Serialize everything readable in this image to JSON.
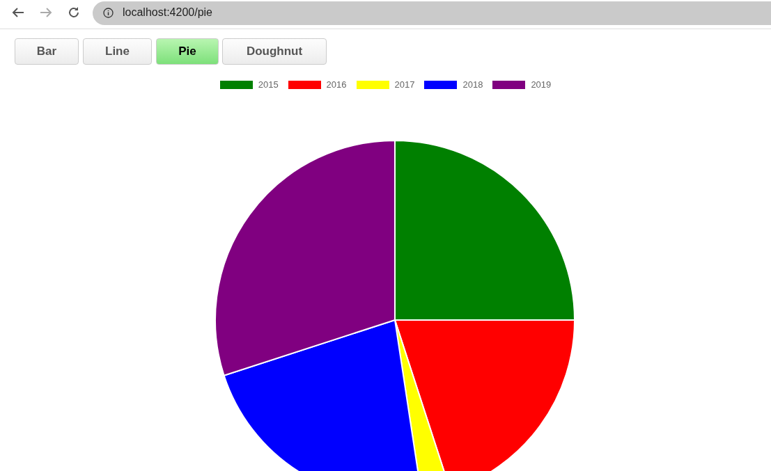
{
  "chart_data": {
    "type": "pie",
    "categories": [
      "2015",
      "2016",
      "2017",
      "2018",
      "2019"
    ],
    "values": [
      25,
      20,
      2.6,
      22.4,
      30
    ],
    "colors": [
      "#008000",
      "#ff0000",
      "#ffff00",
      "#0000ff",
      "#800080"
    ],
    "legend": "top",
    "annotations": [
      "localhost:4200/pie",
      "Bar",
      "Line",
      "Pie",
      "Doughnut"
    ]
  }
}
